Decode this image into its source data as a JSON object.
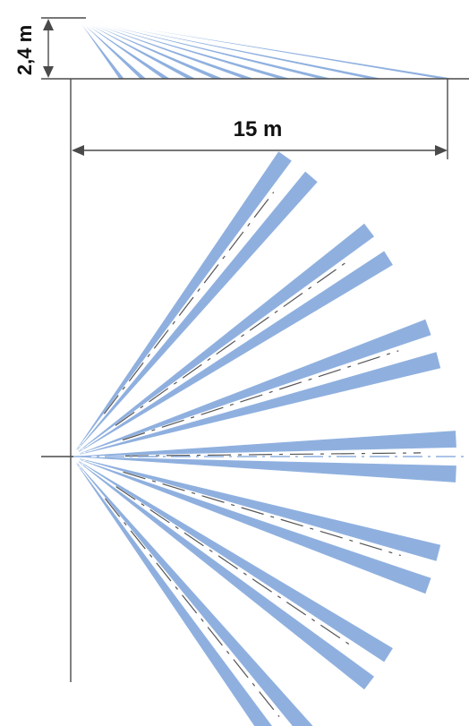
{
  "diagram": {
    "height_label": "2,4 m",
    "range_label": "15 m",
    "colors": {
      "zone_fill": "#8fb0df",
      "dimension_line": "#4a4a4a",
      "zone_dash_dark": "#555555",
      "zone_dash_light": "#ffffff",
      "center_dash": "#8fb0df",
      "text": "#111111"
    },
    "side_view": {
      "description_icon": "side-view-detection-pattern",
      "zone_count": 10
    },
    "top_view": {
      "description_icon": "top-view-fan-detection-pattern",
      "zone_pairs": 7
    }
  }
}
